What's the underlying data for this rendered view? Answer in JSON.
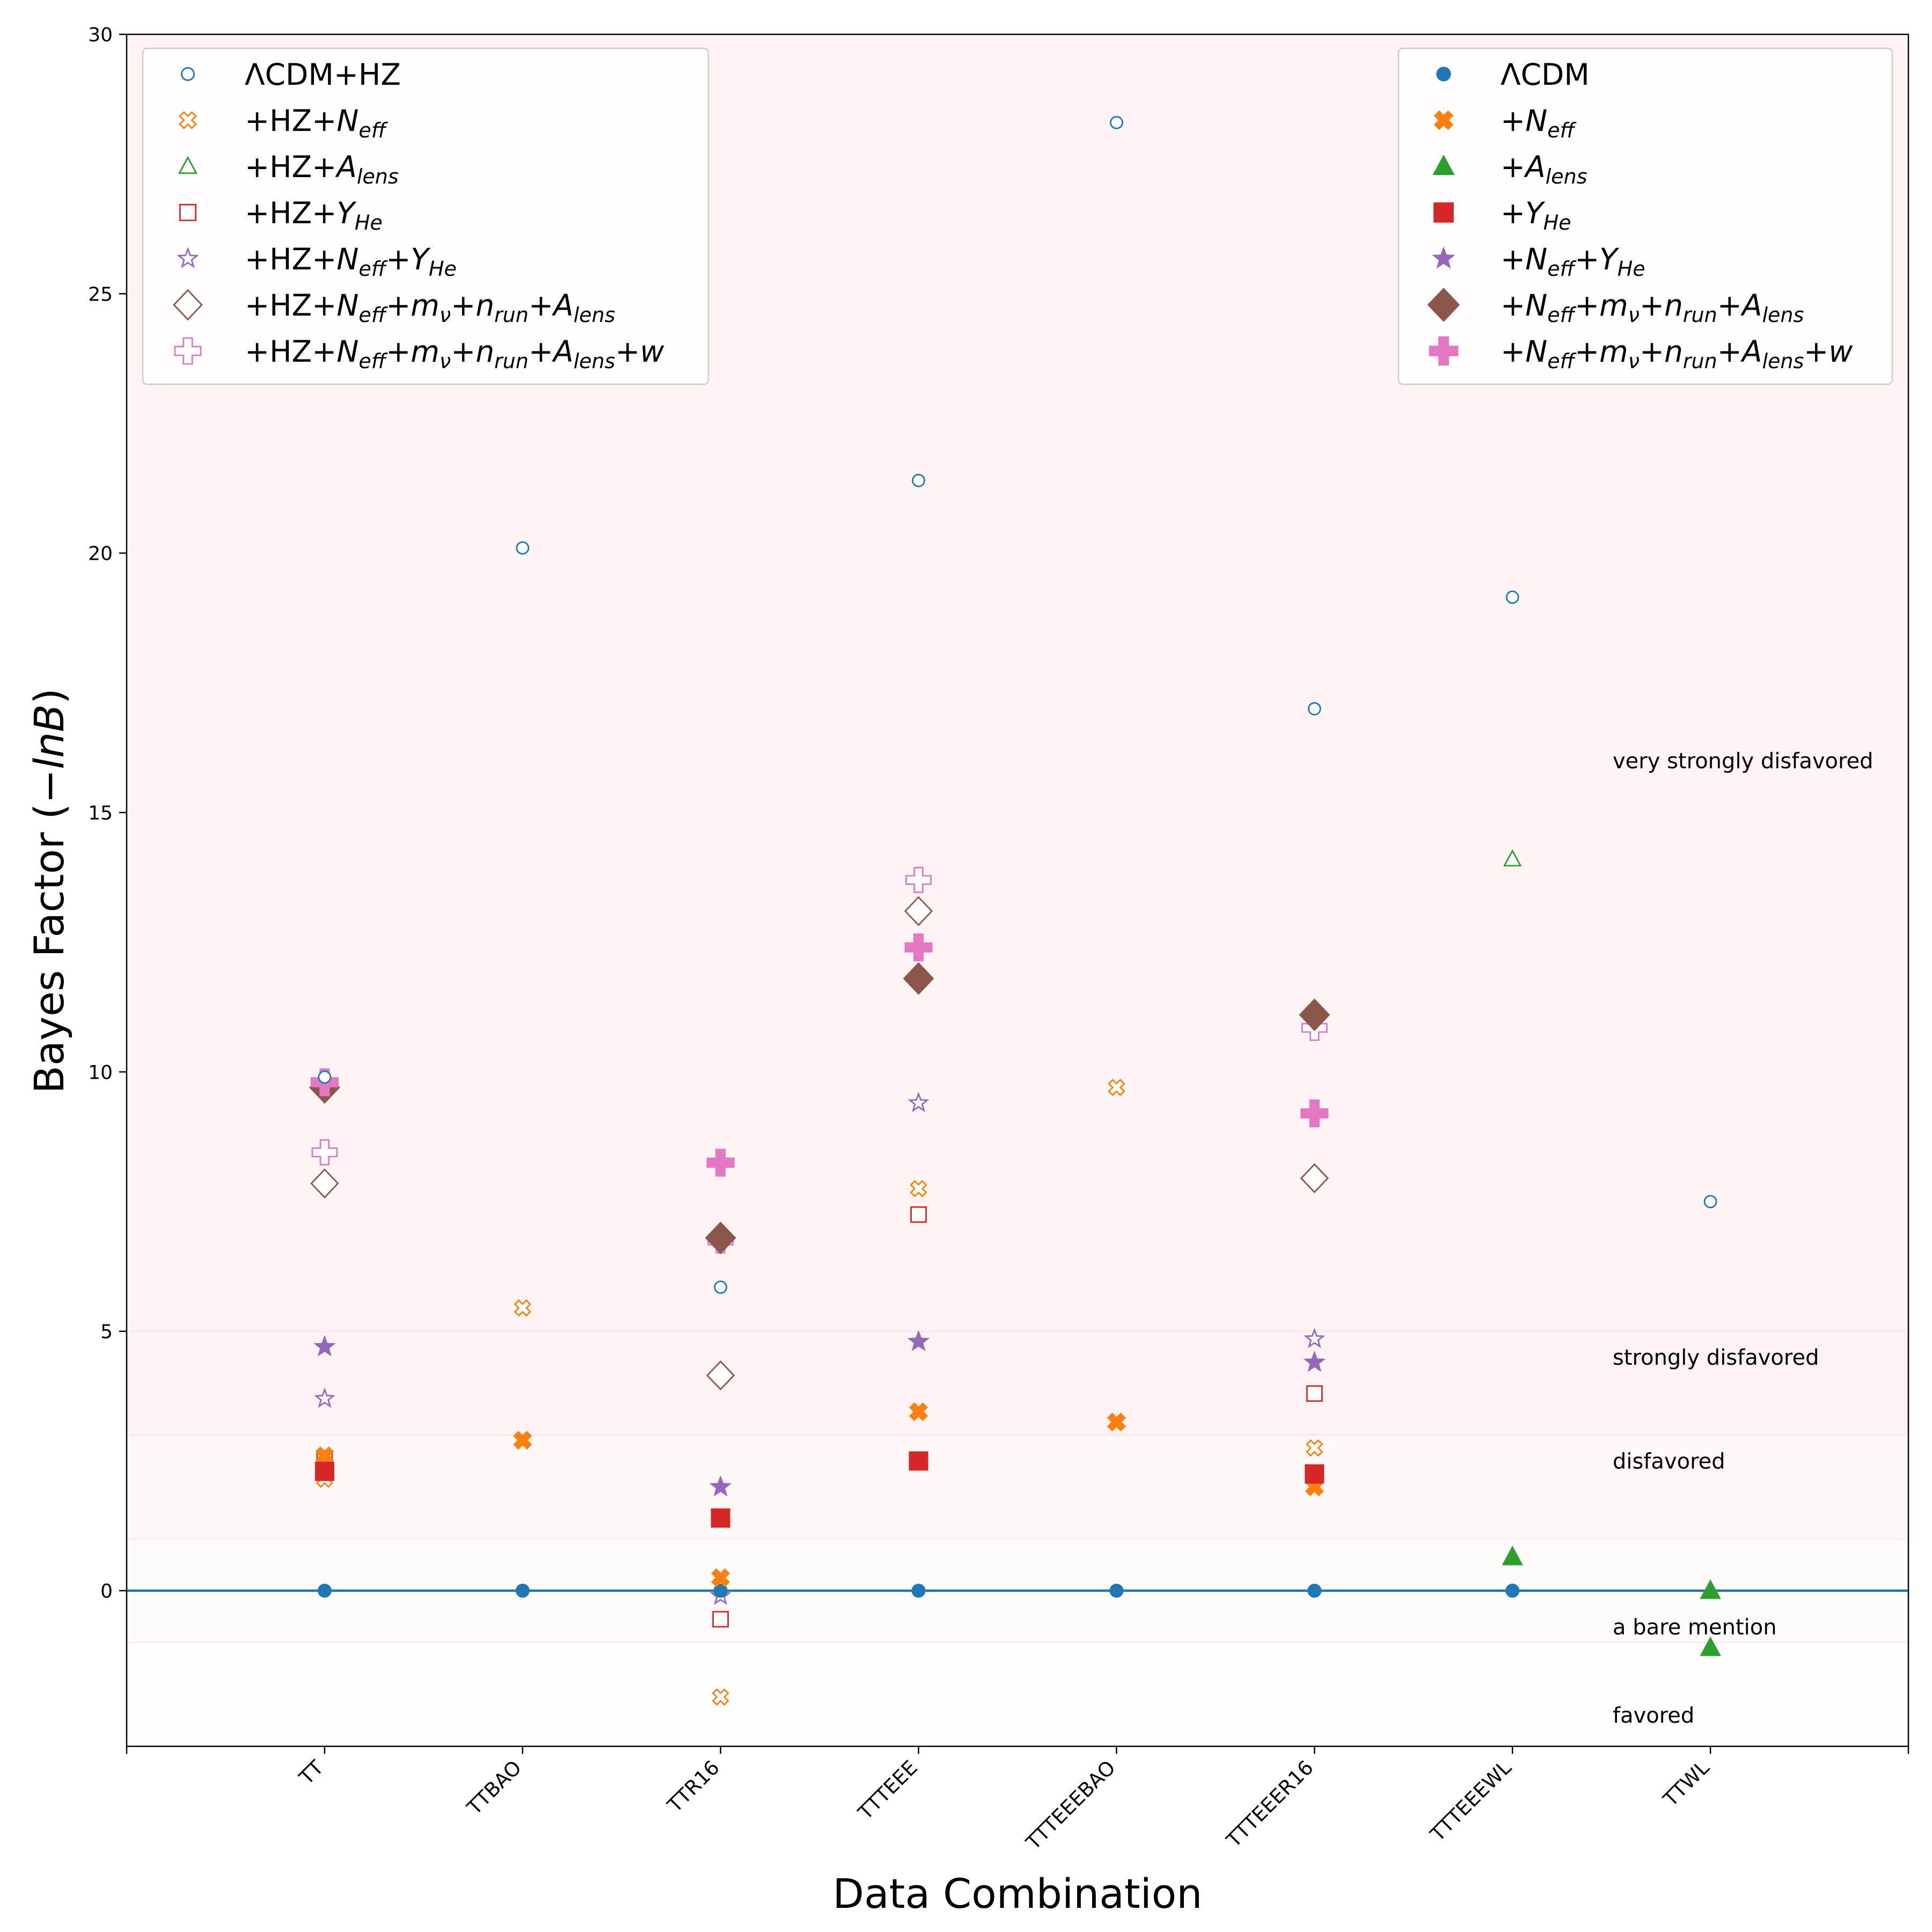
{
  "chart_data": {
    "type": "scatter",
    "xlabel": "Data Combination",
    "ylabel_text": "Bayes Factor (",
    "ylabel_math": "−lnB",
    "ylabel_close": ")",
    "ylim": [
      -3,
      30
    ],
    "yticks": [
      0,
      5,
      10,
      15,
      20,
      25,
      30
    ],
    "categories": [
      "TT",
      "TTBAO",
      "TTR16",
      "TTTEEE",
      "TTTEEEBAO",
      "TTTEEER16",
      "TTTEEEWL",
      "TTWL"
    ],
    "xlim": [
      -1,
      8
    ],
    "reference_line": {
      "y": 0,
      "color": "#1f77b4"
    },
    "bands": [
      {
        "label": "favored",
        "from": -3,
        "to": -1,
        "label_y": -2.4
      },
      {
        "label": "a bare mention",
        "from": -1,
        "to": 1,
        "label_y": -0.7
      },
      {
        "label": "disfavored",
        "from": 1,
        "to": 3,
        "label_y": 2.5
      },
      {
        "label": "strongly disfavored",
        "from": 3,
        "to": 5,
        "label_y": 4.5
      },
      {
        "label": "very strongly disfavored",
        "from": 5,
        "to": 30,
        "label_y": 16
      }
    ],
    "series": [
      {
        "name": "ΛCDM+HZ",
        "legend": [
          [
            "ΛCDM+HZ"
          ]
        ],
        "group": "hz",
        "marker": "circle",
        "filled": false,
        "color": "#1f77b4",
        "size": 22,
        "values": [
          null,
          20.1,
          5.85,
          21.4,
          28.3,
          17.0,
          19.15,
          7.5
        ]
      },
      {
        "name": "+HZ+N_eff",
        "legend": [
          [
            "+HZ+"
          ],
          [
            "N",
            "it"
          ],
          [
            "eff",
            "sub"
          ]
        ],
        "group": "hz",
        "marker": "plusx",
        "filled": false,
        "color": "#ff7f0e",
        "size": 30,
        "values": [
          2.15,
          5.45,
          -2.05,
          7.75,
          9.7,
          2.75,
          null,
          null
        ]
      },
      {
        "name": "+HZ+A_lens",
        "legend": [
          [
            "+HZ+"
          ],
          [
            "A",
            "it"
          ],
          [
            "lens",
            "sub"
          ]
        ],
        "group": "hz",
        "marker": "triangle",
        "filled": false,
        "color": "#2ca02c",
        "size": 30,
        "values": [
          null,
          null,
          null,
          null,
          null,
          null,
          14.1,
          null
        ]
      },
      {
        "name": "+HZ+Y_He",
        "legend": [
          [
            "+HZ+"
          ],
          [
            "Y",
            "it"
          ],
          [
            "He",
            "sub"
          ]
        ],
        "group": "hz",
        "marker": "square",
        "filled": false,
        "color": "#d62728",
        "size": 28,
        "values": [
          2.55,
          null,
          -0.55,
          7.25,
          null,
          3.8,
          null,
          null
        ]
      },
      {
        "name": "+HZ+N_eff+Y_He",
        "legend": [
          [
            "+HZ+"
          ],
          [
            "N",
            "it"
          ],
          [
            "eff",
            "sub"
          ],
          [
            "+"
          ],
          [
            "Y",
            "it"
          ],
          [
            "He",
            "sub"
          ]
        ],
        "group": "hz",
        "marker": "star",
        "filled": false,
        "color": "#9467bd",
        "size": 34,
        "values": [
          3.7,
          null,
          -0.1,
          9.4,
          null,
          4.85,
          null,
          null
        ]
      },
      {
        "name": "+HZ+N_eff+m_nu+n_run+A_lens",
        "legend": [
          [
            "+HZ+"
          ],
          [
            "N",
            "it"
          ],
          [
            "eff",
            "sub"
          ],
          [
            "+"
          ],
          [
            "m",
            "it"
          ],
          [
            "ν",
            "sub"
          ],
          [
            "+"
          ],
          [
            "n",
            "it"
          ],
          [
            "run",
            "sub"
          ],
          [
            "+"
          ],
          [
            "A",
            "it"
          ],
          [
            "lens",
            "sub"
          ]
        ],
        "group": "hz",
        "marker": "diamond",
        "filled": false,
        "color": "#8c564b",
        "size": 52,
        "values": [
          7.85,
          null,
          4.15,
          13.1,
          null,
          7.95,
          null,
          null
        ]
      },
      {
        "name": "+HZ+N_eff+m_nu+n_run+A_lens+w",
        "legend": [
          [
            "+HZ+"
          ],
          [
            "N",
            "it"
          ],
          [
            "eff",
            "sub"
          ],
          [
            "+"
          ],
          [
            "m",
            "it"
          ],
          [
            "ν",
            "sub"
          ],
          [
            "+"
          ],
          [
            "n",
            "it"
          ],
          [
            "run",
            "sub"
          ],
          [
            "+"
          ],
          [
            "A",
            "it"
          ],
          [
            "lens",
            "sub"
          ],
          [
            "+"
          ],
          [
            "w",
            "it"
          ]
        ],
        "group": "hz",
        "marker": "plus",
        "filled": false,
        "color": "#e377c2",
        "size": 46,
        "values": [
          8.45,
          null,
          6.75,
          13.7,
          null,
          10.85,
          null,
          null
        ]
      },
      {
        "name": "ΛCDM",
        "legend": [
          [
            "ΛCDM"
          ]
        ],
        "group": "base",
        "marker": "circle",
        "filled": true,
        "color": "#1f77b4",
        "size": 24,
        "values": [
          0,
          0,
          0,
          0,
          0,
          0,
          0,
          null
        ]
      },
      {
        "name": "+N_eff",
        "legend": [
          [
            "+"
          ],
          [
            "N",
            "it"
          ],
          [
            "eff",
            "sub"
          ]
        ],
        "group": "base",
        "marker": "plusx",
        "filled": true,
        "color": "#ff7f0e",
        "size": 34,
        "values": [
          2.6,
          2.9,
          0.25,
          3.45,
          3.25,
          2.0,
          null,
          null
        ]
      },
      {
        "name": "+A_lens",
        "legend": [
          [
            "+"
          ],
          [
            "A",
            "it"
          ],
          [
            "lens",
            "sub"
          ]
        ],
        "group": "base",
        "marker": "triangle",
        "filled": true,
        "color": "#2ca02c",
        "size": 36,
        "values": [
          null,
          null,
          null,
          null,
          null,
          null,
          0.65,
          0.0
        ]
      },
      {
        "name": "+A_lens (second)",
        "legend": [],
        "group": "none",
        "marker": "triangle",
        "filled": true,
        "color": "#2ca02c",
        "size": 36,
        "values": [
          null,
          null,
          null,
          null,
          null,
          null,
          null,
          -1.1
        ]
      },
      {
        "name": "+Y_He",
        "legend": [
          [
            "+"
          ],
          [
            "Y",
            "it"
          ],
          [
            "He",
            "sub"
          ]
        ],
        "group": "base",
        "marker": "square",
        "filled": true,
        "color": "#d62728",
        "size": 34,
        "values": [
          2.3,
          null,
          1.4,
          2.5,
          null,
          2.25,
          null,
          null
        ]
      },
      {
        "name": "+N_eff+Y_He",
        "legend": [
          [
            "+"
          ],
          [
            "N",
            "it"
          ],
          [
            "eff",
            "sub"
          ],
          [
            "+"
          ],
          [
            "Y",
            "it"
          ],
          [
            "He",
            "sub"
          ]
        ],
        "group": "base",
        "marker": "star",
        "filled": true,
        "color": "#9467bd",
        "size": 38,
        "values": [
          4.7,
          null,
          2.0,
          4.8,
          null,
          4.4,
          null,
          null
        ]
      },
      {
        "name": "+N_eff+m_nu+n_run+A_lens",
        "legend": [
          [
            "+"
          ],
          [
            "N",
            "it"
          ],
          [
            "eff",
            "sub"
          ],
          [
            "+"
          ],
          [
            "m",
            "it"
          ],
          [
            "ν",
            "sub"
          ],
          [
            "+"
          ],
          [
            "n",
            "it"
          ],
          [
            "run",
            "sub"
          ],
          [
            "+"
          ],
          [
            "A",
            "it"
          ],
          [
            "lens",
            "sub"
          ]
        ],
        "group": "base",
        "marker": "diamond",
        "filled": true,
        "color": "#8c564b",
        "size": 58,
        "values": [
          9.7,
          null,
          6.8,
          11.8,
          null,
          11.1,
          null,
          null
        ]
      },
      {
        "name": "+N_eff+m_nu+n_run+A_lens+w",
        "legend": [
          [
            "+"
          ],
          [
            "N",
            "it"
          ],
          [
            "eff",
            "sub"
          ],
          [
            "+"
          ],
          [
            "m",
            "it"
          ],
          [
            "ν",
            "sub"
          ],
          [
            "+"
          ],
          [
            "n",
            "it"
          ],
          [
            "run",
            "sub"
          ],
          [
            "+"
          ],
          [
            "A",
            "it"
          ],
          [
            "lens",
            "sub"
          ],
          [
            "+"
          ],
          [
            "w",
            "it"
          ]
        ],
        "group": "base",
        "marker": "plus",
        "filled": true,
        "color": "#e377c2",
        "size": 50,
        "values": [
          9.8,
          null,
          8.25,
          12.4,
          null,
          9.2,
          null,
          null
        ]
      },
      {
        "name": "ΛCDM+HZ (TT)",
        "legend": [],
        "group": "none",
        "marker": "circle",
        "filled": false,
        "color": "#1f77b4",
        "size": 22,
        "values": [
          9.9,
          null,
          null,
          null,
          null,
          null,
          null,
          null
        ]
      }
    ]
  }
}
